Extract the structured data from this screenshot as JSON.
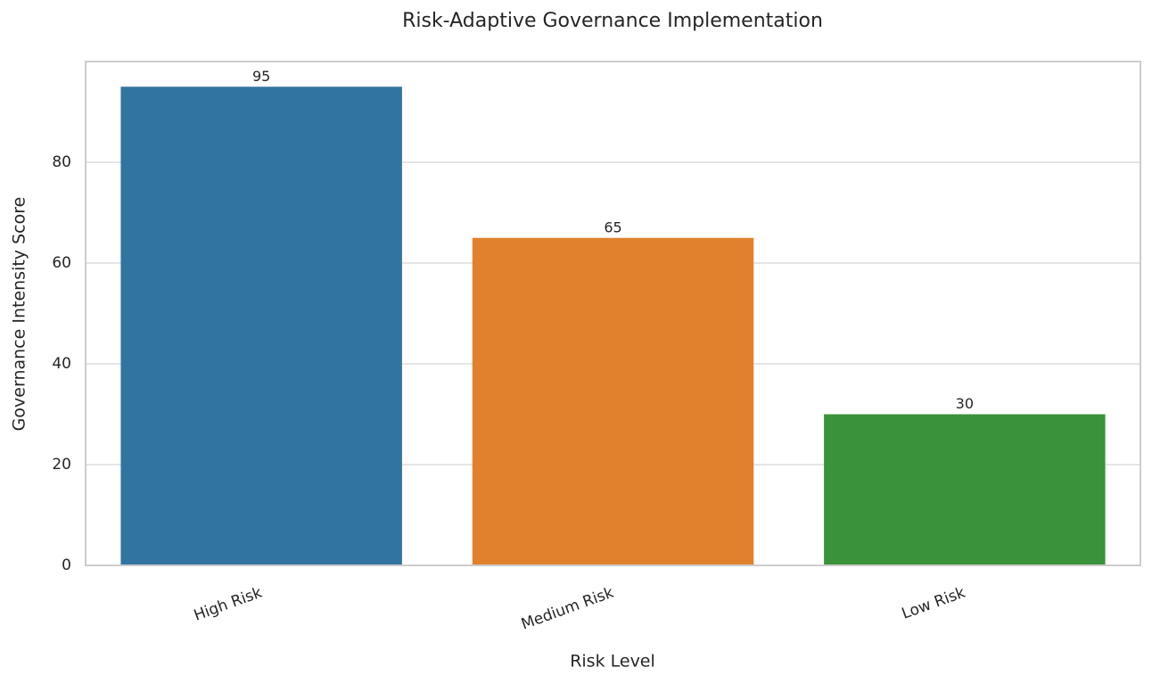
{
  "chart_data": {
    "type": "bar",
    "title": "Risk-Adaptive Governance Implementation",
    "x_label": "Risk Level",
    "y_label": "Governance Intensity Score",
    "categories": [
      "High Risk",
      "Medium Risk",
      "Low Risk"
    ],
    "values": [
      95,
      65,
      30
    ],
    "colors": [
      "#3274a1",
      "#e1812c",
      "#3a923a"
    ],
    "ylim": [
      0,
      100
    ],
    "yticks": [
      0,
      20,
      40,
      60,
      80
    ],
    "grid": true
  }
}
